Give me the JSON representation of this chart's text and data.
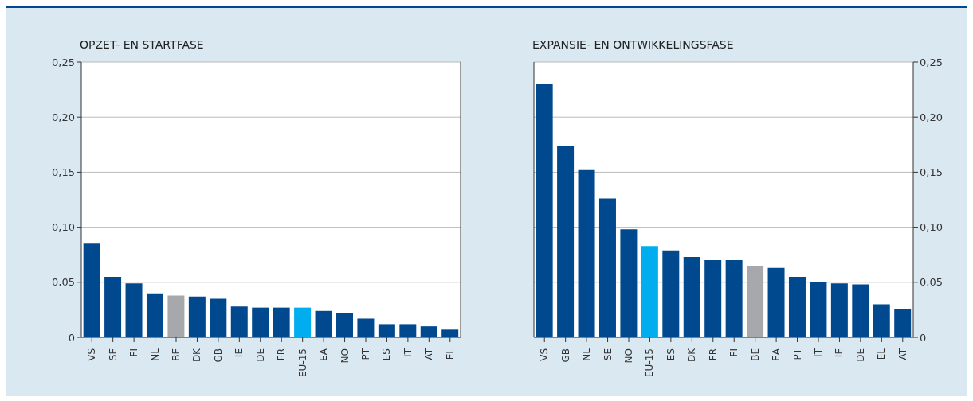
{
  "chart_data": [
    {
      "type": "bar",
      "title": "OPZET- EN STARTFASE",
      "categories": [
        "VS",
        "SE",
        "FI",
        "NL",
        "BE",
        "DK",
        "GB",
        "IE",
        "DE",
        "FR",
        "EU-15",
        "EA",
        "NO",
        "PT",
        "ES",
        "IT",
        "AT",
        "EL"
      ],
      "values": [
        0.085,
        0.055,
        0.049,
        0.04,
        0.038,
        0.037,
        0.035,
        0.028,
        0.027,
        0.027,
        0.027,
        0.024,
        0.022,
        0.017,
        0.012,
        0.012,
        0.01,
        0.007
      ],
      "colors": [
        "#00498f",
        "#00498f",
        "#00498f",
        "#00498f",
        "#a7a8ab",
        "#00498f",
        "#00498f",
        "#00498f",
        "#00498f",
        "#00498f",
        "#00aeef",
        "#00498f",
        "#00498f",
        "#00498f",
        "#00498f",
        "#00498f",
        "#00498f",
        "#00498f"
      ],
      "ylim": [
        0,
        0.25
      ],
      "yticks": [
        0,
        {
          "value": 0.05,
          "label": "0,05"
        },
        {
          "value": 0.1,
          "label": "0,10"
        },
        {
          "value": 0.15,
          "label": "0,15"
        },
        {
          "value": 0.2,
          "label": "0,20"
        },
        {
          "value": 0.25,
          "label": "0,25"
        }
      ],
      "grid": "y"
    },
    {
      "type": "bar",
      "title": "EXPANSIE- EN ONTWIKKELINGSFASE",
      "categories": [
        "VS",
        "GB",
        "NL",
        "SE",
        "NO",
        "EU-15",
        "ES",
        "DK",
        "FR",
        "FI",
        "BE",
        "EA",
        "PT",
        "IT",
        "IE",
        "DE",
        "EL",
        "AT"
      ],
      "series": [
        {
          "axis": "y2",
          "values": [
            0.23,
            0.174,
            0.152,
            0.126,
            0.098,
            0.083,
            0.079,
            0.073,
            0.07,
            0.07,
            0.065,
            0.063,
            0.055,
            0.05,
            0.049,
            0.048,
            0.03,
            0.026
          ],
          "colors": [
            "#00498f",
            "#00498f",
            "#00498f",
            "#00498f",
            "#00498f",
            "#00aeef",
            "#00498f",
            "#00498f",
            "#00498f",
            "#00498f",
            "#a7a8ab",
            "#00498f",
            "#00498f",
            "#00498f",
            "#00498f",
            "#00498f",
            "#00498f",
            "#00498f"
          ]
        }
      ],
      "y2lim": [
        0,
        0.25
      ],
      "y2ticks": [
        0,
        {
          "value": 0.05,
          "label": "0,05"
        },
        {
          "value": 0.1,
          "label": "0,10"
        },
        {
          "value": 0.15,
          "label": "0,15"
        },
        {
          "value": 0.2,
          "label": "0,20"
        },
        {
          "value": 0.25,
          "label": "0,25"
        }
      ],
      "grid": "y"
    }
  ]
}
